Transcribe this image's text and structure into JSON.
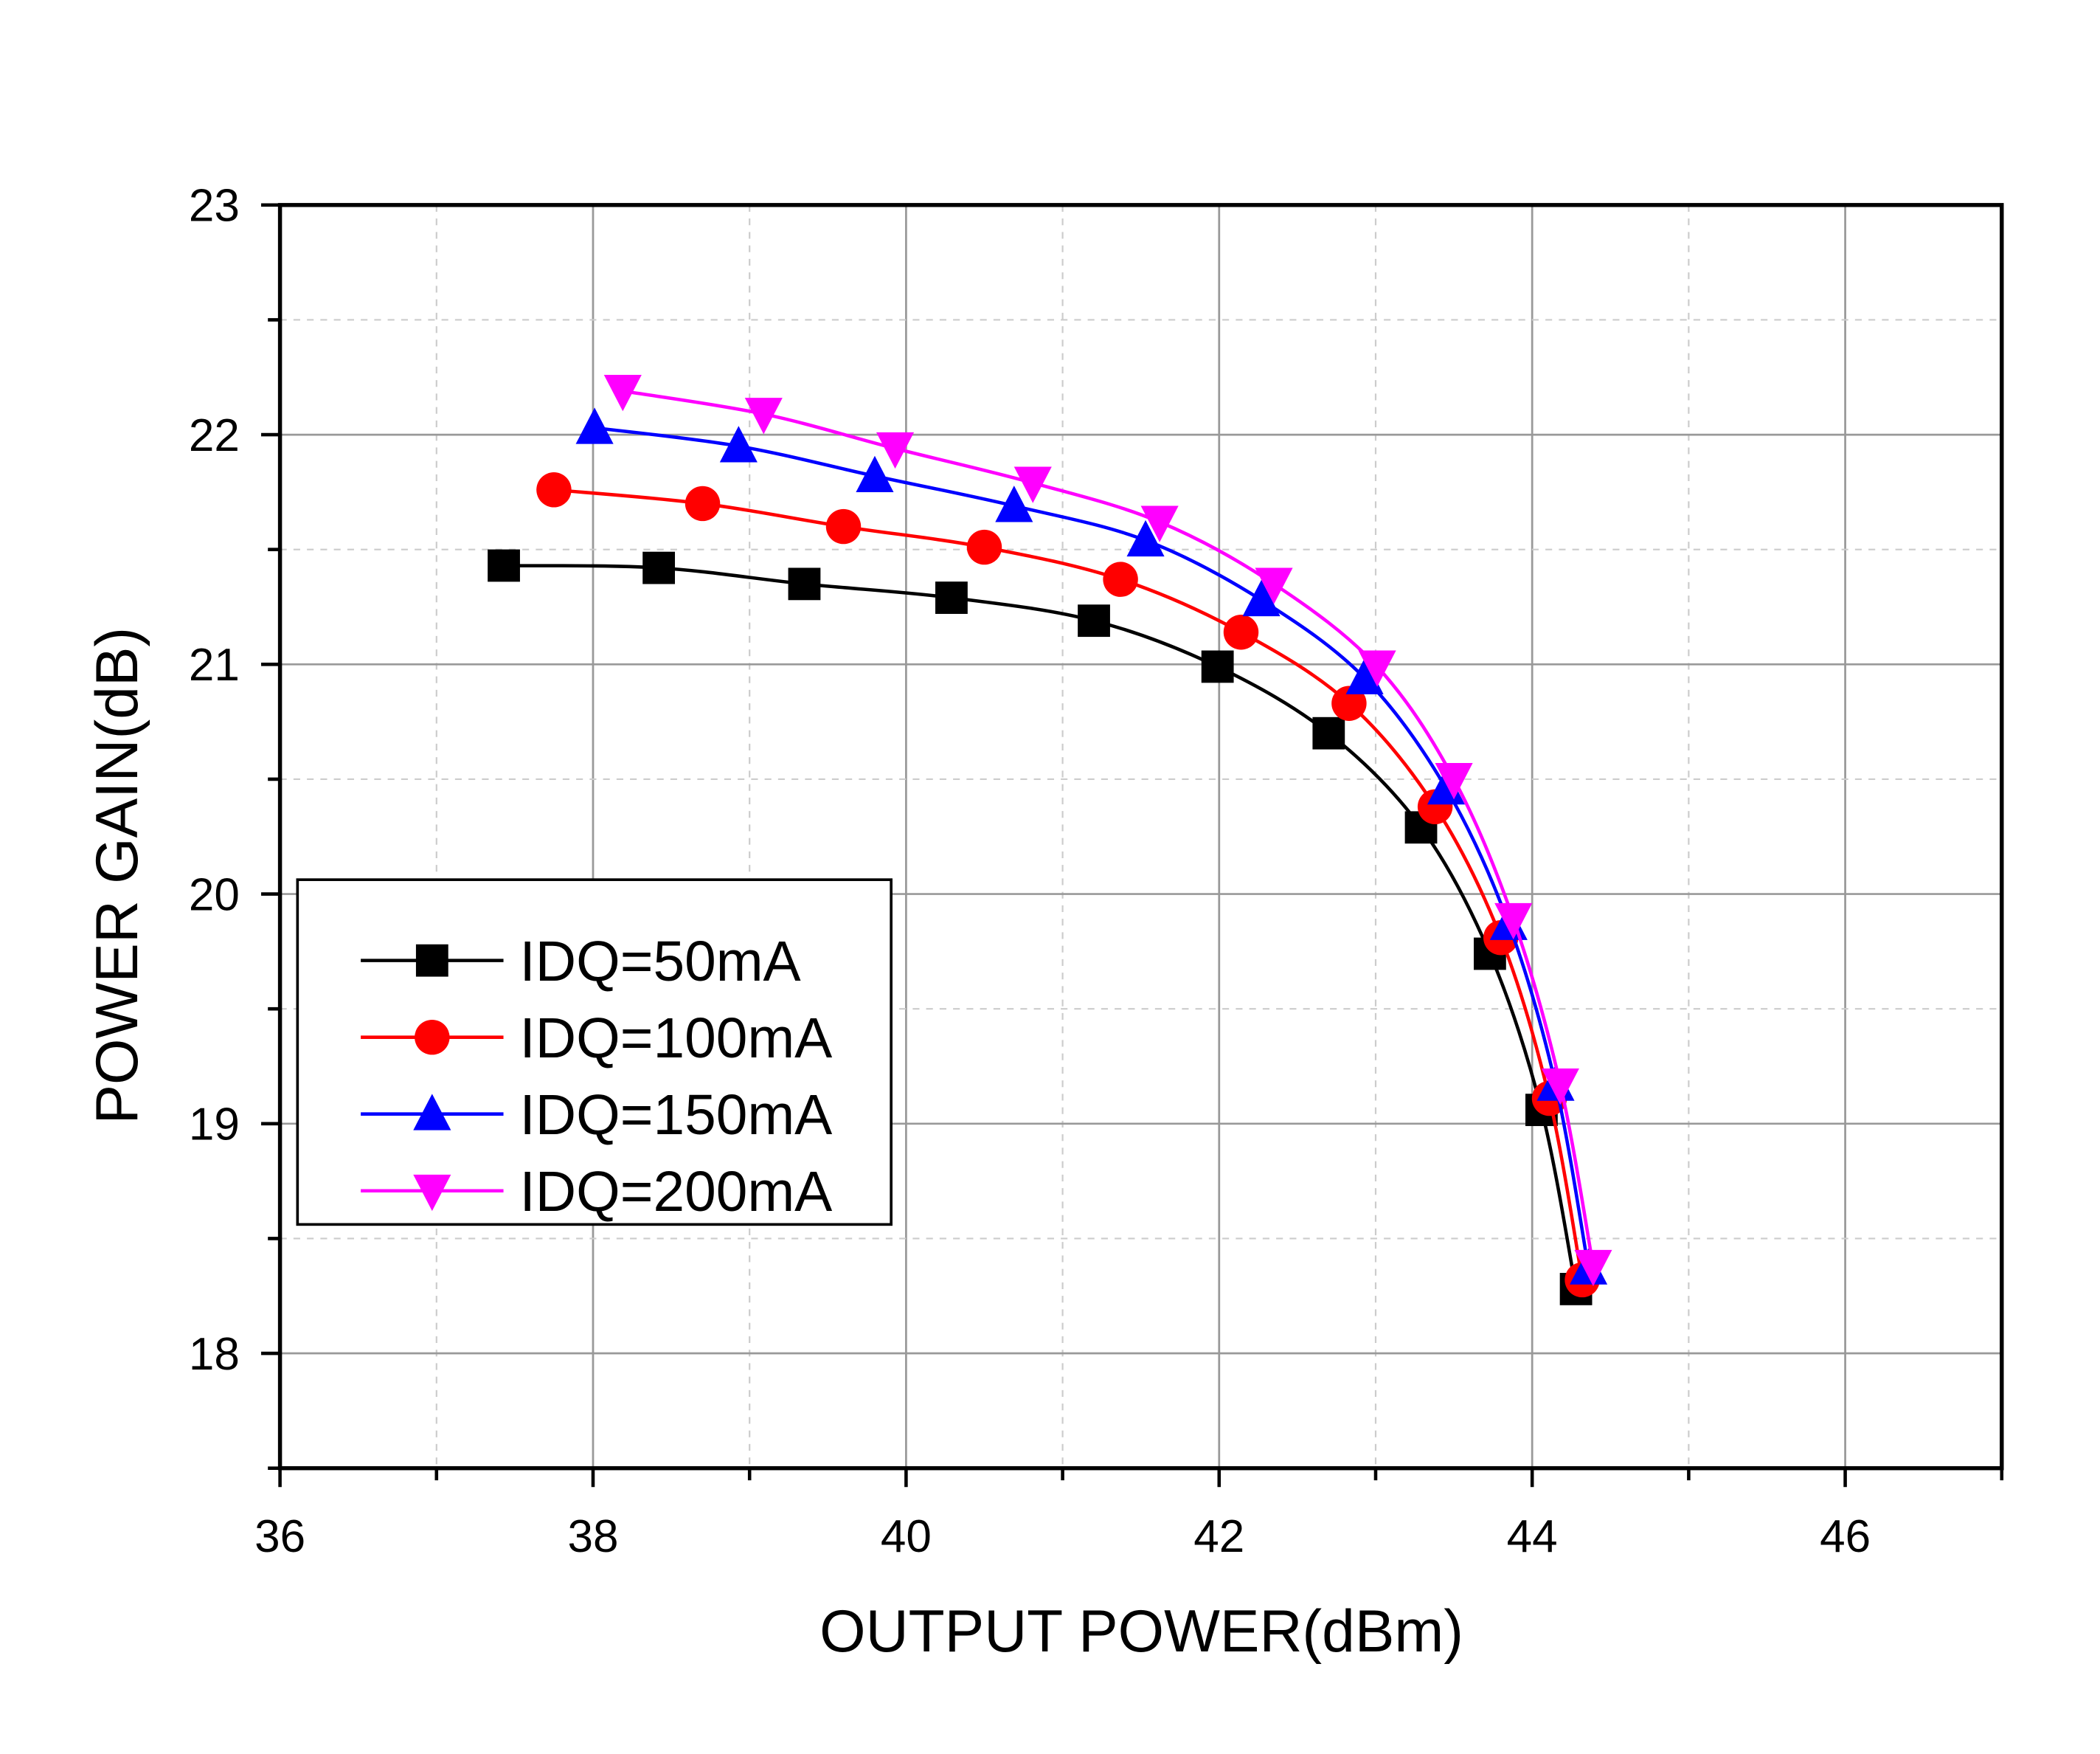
{
  "chart_data": {
    "type": "line",
    "title": "",
    "xlabel": "OUTPUT POWER(dBm)",
    "ylabel": "POWER GAIN(dB)",
    "xlim": [
      36,
      47
    ],
    "ylim": [
      17.5,
      23
    ],
    "xticks": [
      36,
      38,
      40,
      42,
      44,
      46
    ],
    "yticks": [
      18,
      19,
      20,
      21,
      22,
      23
    ],
    "grid": true,
    "legend_position": "bottom-left",
    "series": [
      {
        "name": "IDQ=50mA",
        "color": "#000000",
        "marker": "square",
        "x": [
          37.43,
          38.42,
          39.35,
          40.29,
          41.2,
          41.99,
          42.7,
          43.29,
          43.73,
          44.06,
          44.28
        ],
        "y": [
          21.43,
          21.42,
          21.35,
          21.29,
          21.19,
          20.99,
          20.7,
          20.29,
          19.74,
          19.06,
          18.28
        ]
      },
      {
        "name": "IDQ=100mA",
        "color": "#ff0000",
        "marker": "circle",
        "x": [
          37.75,
          38.7,
          39.6,
          40.5,
          41.37,
          42.14,
          42.83,
          43.38,
          43.8,
          44.11,
          44.32
        ],
        "y": [
          21.76,
          21.7,
          21.6,
          21.51,
          21.37,
          21.14,
          20.83,
          20.38,
          19.81,
          19.11,
          18.32
        ]
      },
      {
        "name": "IDQ=150mA",
        "color": "#0000ff",
        "marker": "triangle-up",
        "x": [
          38.01,
          38.93,
          39.8,
          40.69,
          41.53,
          42.27,
          42.93,
          43.45,
          43.85,
          44.15,
          44.36
        ],
        "y": [
          22.03,
          21.95,
          21.82,
          21.69,
          21.54,
          21.28,
          20.94,
          20.46,
          19.87,
          19.17,
          18.37
        ]
      },
      {
        "name": "IDQ=200mA",
        "color": "#ff00ff",
        "marker": "triangle-down",
        "x": [
          38.19,
          39.09,
          39.93,
          40.81,
          41.62,
          42.35,
          43.01,
          43.5,
          43.88,
          44.18,
          44.39
        ],
        "y": [
          22.19,
          22.09,
          21.94,
          21.79,
          21.62,
          21.35,
          20.99,
          20.5,
          19.89,
          19.17,
          18.38
        ]
      }
    ]
  }
}
